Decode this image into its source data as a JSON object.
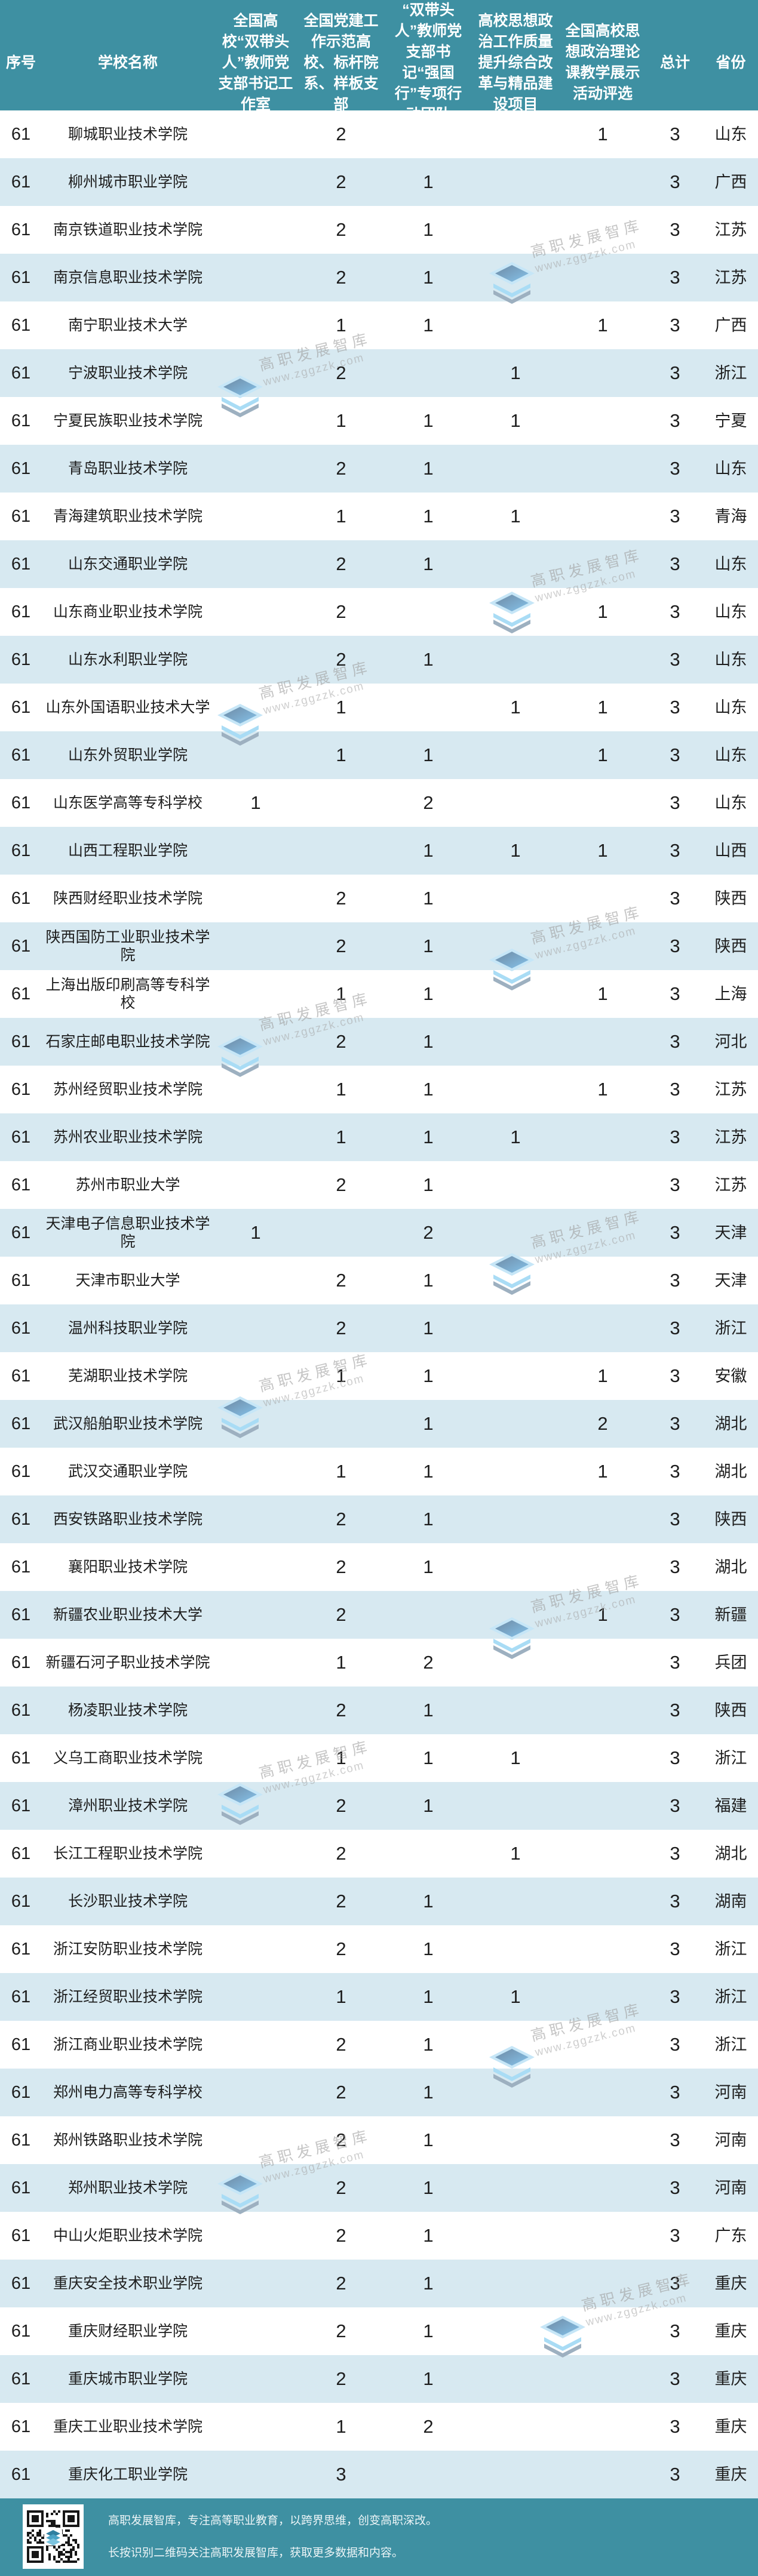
{
  "chart_data": {
    "type": "table",
    "columns": [
      "序号",
      "学校名称",
      "全国高校“双带头人”教师党支部书记工作室",
      "全国党建工作示范高校、标杆院系、样板支部",
      "“双带头人”教师党支部书记“强国行”专项行动团队",
      "高校思想政治工作质量提升综合改革与精品建设项目",
      "全国高校思想政治理论课教学展示活动评选",
      "总计",
      "省份"
    ],
    "rows": [
      [
        "61",
        "聊城职业技术学院",
        "",
        "2",
        "",
        "",
        "1",
        "3",
        "山东"
      ],
      [
        "61",
        "柳州城市职业学院",
        "",
        "2",
        "1",
        "",
        "",
        "3",
        "广西"
      ],
      [
        "61",
        "南京铁道职业技术学院",
        "",
        "2",
        "1",
        "",
        "",
        "3",
        "江苏"
      ],
      [
        "61",
        "南京信息职业技术学院",
        "",
        "2",
        "1",
        "",
        "",
        "3",
        "江苏"
      ],
      [
        "61",
        "南宁职业技术大学",
        "",
        "1",
        "1",
        "",
        "1",
        "3",
        "广西"
      ],
      [
        "61",
        "宁波职业技术学院",
        "",
        "2",
        "",
        "1",
        "",
        "3",
        "浙江"
      ],
      [
        "61",
        "宁夏民族职业技术学院",
        "",
        "1",
        "1",
        "1",
        "",
        "3",
        "宁夏"
      ],
      [
        "61",
        "青岛职业技术学院",
        "",
        "2",
        "1",
        "",
        "",
        "3",
        "山东"
      ],
      [
        "61",
        "青海建筑职业技术学院",
        "",
        "1",
        "1",
        "1",
        "",
        "3",
        "青海"
      ],
      [
        "61",
        "山东交通职业学院",
        "",
        "2",
        "1",
        "",
        "",
        "3",
        "山东"
      ],
      [
        "61",
        "山东商业职业技术学院",
        "",
        "2",
        "",
        "",
        "1",
        "3",
        "山东"
      ],
      [
        "61",
        "山东水利职业学院",
        "",
        "2",
        "1",
        "",
        "",
        "3",
        "山东"
      ],
      [
        "61",
        "山东外国语职业技术大学",
        "",
        "1",
        "",
        "1",
        "1",
        "3",
        "山东"
      ],
      [
        "61",
        "山东外贸职业学院",
        "",
        "1",
        "1",
        "",
        "1",
        "3",
        "山东"
      ],
      [
        "61",
        "山东医学高等专科学校",
        "1",
        "",
        "2",
        "",
        "",
        "3",
        "山东"
      ],
      [
        "61",
        "山西工程职业学院",
        "",
        "",
        "1",
        "1",
        "1",
        "3",
        "山西"
      ],
      [
        "61",
        "陕西财经职业技术学院",
        "",
        "2",
        "1",
        "",
        "",
        "3",
        "陕西"
      ],
      [
        "61",
        "陕西国防工业职业技术学院",
        "",
        "2",
        "1",
        "",
        "",
        "3",
        "陕西"
      ],
      [
        "61",
        "上海出版印刷高等专科学校",
        "",
        "1",
        "1",
        "",
        "1",
        "3",
        "上海"
      ],
      [
        "61",
        "石家庄邮电职业技术学院",
        "",
        "2",
        "1",
        "",
        "",
        "3",
        "河北"
      ],
      [
        "61",
        "苏州经贸职业技术学院",
        "",
        "1",
        "1",
        "",
        "1",
        "3",
        "江苏"
      ],
      [
        "61",
        "苏州农业职业技术学院",
        "",
        "1",
        "1",
        "1",
        "",
        "3",
        "江苏"
      ],
      [
        "61",
        "苏州市职业大学",
        "",
        "2",
        "1",
        "",
        "",
        "3",
        "江苏"
      ],
      [
        "61",
        "天津电子信息职业技术学院",
        "1",
        "",
        "2",
        "",
        "",
        "3",
        "天津"
      ],
      [
        "61",
        "天津市职业大学",
        "",
        "2",
        "1",
        "",
        "",
        "3",
        "天津"
      ],
      [
        "61",
        "温州科技职业学院",
        "",
        "2",
        "1",
        "",
        "",
        "3",
        "浙江"
      ],
      [
        "61",
        "芜湖职业技术学院",
        "",
        "1",
        "1",
        "",
        "1",
        "3",
        "安徽"
      ],
      [
        "61",
        "武汉船舶职业技术学院",
        "",
        "",
        "1",
        "",
        "2",
        "3",
        "湖北"
      ],
      [
        "61",
        "武汉交通职业学院",
        "",
        "1",
        "1",
        "",
        "1",
        "3",
        "湖北"
      ],
      [
        "61",
        "西安铁路职业技术学院",
        "",
        "2",
        "1",
        "",
        "",
        "3",
        "陕西"
      ],
      [
        "61",
        "襄阳职业技术学院",
        "",
        "2",
        "1",
        "",
        "",
        "3",
        "湖北"
      ],
      [
        "61",
        "新疆农业职业技术大学",
        "",
        "2",
        "",
        "",
        "1",
        "3",
        "新疆"
      ],
      [
        "61",
        "新疆石河子职业技术学院",
        "",
        "1",
        "2",
        "",
        "",
        "3",
        "兵团"
      ],
      [
        "61",
        "杨凌职业技术学院",
        "",
        "2",
        "1",
        "",
        "",
        "3",
        "陕西"
      ],
      [
        "61",
        "义乌工商职业技术学院",
        "",
        "1",
        "1",
        "1",
        "",
        "3",
        "浙江"
      ],
      [
        "61",
        "漳州职业技术学院",
        "",
        "2",
        "1",
        "",
        "",
        "3",
        "福建"
      ],
      [
        "61",
        "长江工程职业技术学院",
        "",
        "2",
        "",
        "1",
        "",
        "3",
        "湖北"
      ],
      [
        "61",
        "长沙职业技术学院",
        "",
        "2",
        "1",
        "",
        "",
        "3",
        "湖南"
      ],
      [
        "61",
        "浙江安防职业技术学院",
        "",
        "2",
        "1",
        "",
        "",
        "3",
        "浙江"
      ],
      [
        "61",
        "浙江经贸职业技术学院",
        "",
        "1",
        "1",
        "1",
        "",
        "3",
        "浙江"
      ],
      [
        "61",
        "浙江商业职业技术学院",
        "",
        "2",
        "1",
        "",
        "",
        "3",
        "浙江"
      ],
      [
        "61",
        "郑州电力高等专科学校",
        "",
        "2",
        "1",
        "",
        "",
        "3",
        "河南"
      ],
      [
        "61",
        "郑州铁路职业技术学院",
        "",
        "2",
        "1",
        "",
        "",
        "3",
        "河南"
      ],
      [
        "61",
        "郑州职业技术学院",
        "",
        "2",
        "1",
        "",
        "",
        "3",
        "河南"
      ],
      [
        "61",
        "中山火炬职业技术学院",
        "",
        "2",
        "1",
        "",
        "",
        "3",
        "广东"
      ],
      [
        "61",
        "重庆安全技术职业学院",
        "",
        "2",
        "1",
        "",
        "",
        "3",
        "重庆"
      ],
      [
        "61",
        "重庆财经职业学院",
        "",
        "2",
        "1",
        "",
        "",
        "3",
        "重庆"
      ],
      [
        "61",
        "重庆城市职业学院",
        "",
        "2",
        "1",
        "",
        "",
        "3",
        "重庆"
      ],
      [
        "61",
        "重庆工业职业技术学院",
        "",
        "1",
        "2",
        "",
        "",
        "3",
        "重庆"
      ],
      [
        "61",
        "重庆化工职业学院",
        "",
        "3",
        "",
        "",
        "",
        "3",
        "重庆"
      ]
    ]
  },
  "watermark": {
    "text": "高职发展智库",
    "url": "www.zggzzk.com"
  },
  "footer": {
    "line1": "高职发展智库，专注高等职业教育，以跨界思维，创变高职深改。",
    "line2": "长按识别二维码关注高职发展智库，获取更多数据和内容。"
  },
  "colors": {
    "header_bg": "#3E90A2",
    "row_alt_bg": "#D7E9F1",
    "footer_bg": "#3E90A2",
    "text": "#1D1D1D",
    "header_text": "#FFFFFF"
  }
}
